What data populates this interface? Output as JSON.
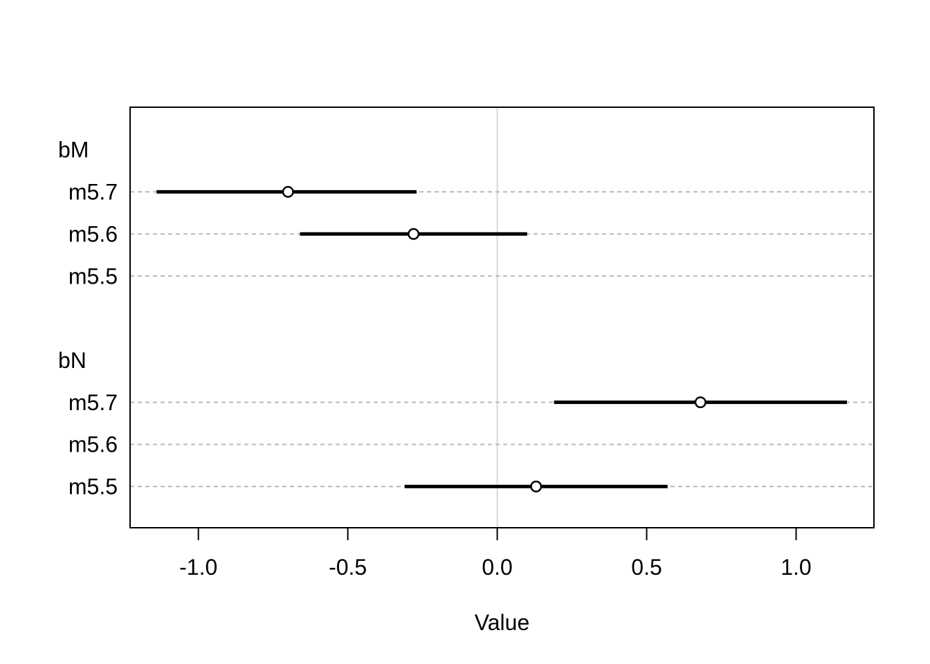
{
  "figure": {
    "background": "#ffffff"
  },
  "chart_data": {
    "type": "pointrange",
    "title": "",
    "xlabel": "Value",
    "ylabel": "",
    "xlim": [
      -1.2285,
      1.2605
    ],
    "x_ticks": [
      {
        "value": -1.0,
        "label": "-1.0"
      },
      {
        "value": -0.5,
        "label": "-0.5"
      },
      {
        "value": 0.0,
        "label": "0.0"
      },
      {
        "value": 0.5,
        "label": "0.5"
      },
      {
        "value": 1.0,
        "label": "1.0"
      }
    ],
    "zero_line_value": 0,
    "grid": "horizontal dashed per model row",
    "legend_position": "none",
    "groups": [
      {
        "label": "bM",
        "rows": [
          {
            "label": "m5.7",
            "estimate": -0.7,
            "lower": -1.14,
            "upper": -0.27
          },
          {
            "label": "m5.6",
            "estimate": -0.28,
            "lower": -0.66,
            "upper": 0.1
          },
          {
            "label": "m5.5",
            "estimate": null,
            "lower": null,
            "upper": null
          }
        ]
      },
      {
        "label": "bN",
        "rows": [
          {
            "label": "m5.7",
            "estimate": 0.68,
            "lower": 0.19,
            "upper": 1.17
          },
          {
            "label": "m5.6",
            "estimate": null,
            "lower": null,
            "upper": null
          },
          {
            "label": "m5.5",
            "estimate": 0.13,
            "lower": -0.31,
            "upper": 0.57
          }
        ]
      }
    ],
    "colors": {
      "interval": "#000000",
      "point_stroke": "#000000",
      "point_fill": "#ffffff",
      "grid_line": "#b8b8b8",
      "zero_line": "#d9d9d9",
      "frame": "#000000",
      "text": "#000000",
      "background": "#ffffff"
    }
  }
}
